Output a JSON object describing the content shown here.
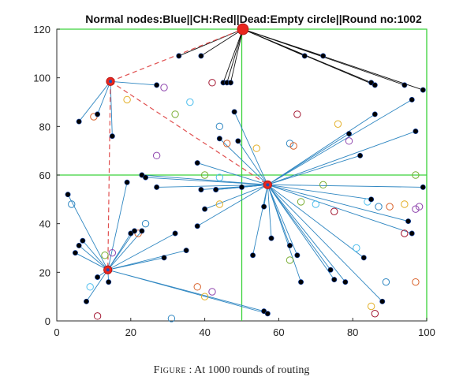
{
  "chart_data": {
    "type": "scatter",
    "title": "Normal nodes:Blue||CH:Red||Dead:Empty circle||Round no:1002",
    "xlabel": "",
    "ylabel": "",
    "xlim": [
      0,
      100
    ],
    "ylim": [
      0,
      120
    ],
    "x_ticks": [
      "0",
      "20",
      "40",
      "60",
      "80",
      "100"
    ],
    "y_ticks": [
      "0",
      "20",
      "40",
      "60",
      "80",
      "100",
      "120"
    ],
    "grid": false,
    "partition_lines": {
      "x": 50,
      "y": 60
    },
    "colors": {
      "alive_node": "#000000",
      "alive_node_edge": "#1f4fb4",
      "cluster_head": "#e8261d",
      "member_link": "#2e86c1",
      "head_link_top": "#111111",
      "ch_route": "#e05050",
      "partition": "#3ad23a",
      "dead_palette": [
        "#2e86c1",
        "#d9622b",
        "#e3b02a",
        "#8e44ad",
        "#77ac30",
        "#4dbeee",
        "#a2142f"
      ]
    },
    "cluster_heads": [
      {
        "x": 50.3,
        "y": 120
      },
      {
        "x": 14.5,
        "y": 98.5
      },
      {
        "x": 57,
        "y": 56
      },
      {
        "x": 13.8,
        "y": 21
      }
    ],
    "ch_route": [
      [
        14.5,
        98.5
      ],
      [
        50.3,
        120
      ],
      [
        14.5,
        98.5
      ],
      [
        57,
        56
      ],
      [
        14.5,
        98.5
      ],
      [
        13.8,
        21
      ]
    ],
    "alive_nodes": [
      [
        33,
        109
      ],
      [
        39,
        109
      ],
      [
        45,
        98
      ],
      [
        46,
        98
      ],
      [
        47,
        98
      ],
      [
        67,
        109
      ],
      [
        72,
        109
      ],
      [
        85,
        98
      ],
      [
        86,
        97
      ],
      [
        94,
        97
      ],
      [
        96,
        91
      ],
      [
        99,
        95
      ],
      [
        6,
        82
      ],
      [
        11,
        85
      ],
      [
        15,
        76
      ],
      [
        27,
        97
      ],
      [
        48,
        86
      ],
      [
        44,
        75
      ],
      [
        49,
        74
      ],
      [
        38,
        65
      ],
      [
        23,
        60
      ],
      [
        24,
        59
      ],
      [
        27,
        55
      ],
      [
        39,
        54
      ],
      [
        43,
        54
      ],
      [
        40,
        46
      ],
      [
        43,
        54
      ],
      [
        50,
        55
      ],
      [
        56,
        47
      ],
      [
        58,
        34
      ],
      [
        53,
        27
      ],
      [
        63,
        31
      ],
      [
        65,
        27
      ],
      [
        66,
        16
      ],
      [
        74,
        21
      ],
      [
        75,
        17
      ],
      [
        78,
        16
      ],
      [
        79,
        77
      ],
      [
        82,
        68
      ],
      [
        86,
        85
      ],
      [
        85,
        50
      ],
      [
        95,
        41
      ],
      [
        96,
        36
      ],
      [
        97,
        78
      ],
      [
        99,
        55
      ],
      [
        83,
        26
      ],
      [
        88,
        8
      ],
      [
        56,
        4
      ],
      [
        57,
        3
      ],
      [
        3,
        52
      ],
      [
        5,
        28
      ],
      [
        6,
        31
      ],
      [
        7,
        33
      ],
      [
        8,
        8
      ],
      [
        11,
        18
      ],
      [
        14,
        16
      ],
      [
        19,
        57
      ],
      [
        20,
        36
      ],
      [
        21,
        37
      ],
      [
        23,
        37
      ],
      [
        29,
        26
      ],
      [
        32,
        36
      ],
      [
        35,
        29
      ],
      [
        38,
        39
      ]
    ],
    "dead_nodes": [
      [
        4,
        48
      ],
      [
        10,
        84
      ],
      [
        19,
        91
      ],
      [
        29,
        96
      ],
      [
        32,
        85
      ],
      [
        36,
        90
      ],
      [
        42,
        98
      ],
      [
        44,
        80
      ],
      [
        46,
        73
      ],
      [
        54,
        71
      ],
      [
        27,
        68
      ],
      [
        40,
        60
      ],
      [
        44,
        59
      ],
      [
        65,
        85
      ],
      [
        63,
        73
      ],
      [
        64,
        72
      ],
      [
        76,
        81
      ],
      [
        79,
        74
      ],
      [
        72,
        56
      ],
      [
        70,
        48
      ],
      [
        75,
        45
      ],
      [
        87,
        47
      ],
      [
        90,
        47
      ],
      [
        94,
        48
      ],
      [
        97,
        46
      ],
      [
        97,
        60
      ],
      [
        84,
        49
      ],
      [
        94,
        36
      ],
      [
        24,
        40
      ],
      [
        22,
        36
      ],
      [
        44,
        48
      ],
      [
        15,
        28
      ],
      [
        13,
        27
      ],
      [
        9,
        14
      ],
      [
        11,
        2
      ],
      [
        31,
        1
      ],
      [
        38,
        14
      ],
      [
        40,
        10
      ],
      [
        42,
        12
      ],
      [
        63,
        25
      ],
      [
        81,
        30
      ],
      [
        86,
        3
      ],
      [
        89,
        16
      ],
      [
        97,
        16
      ],
      [
        85,
        6
      ],
      [
        98,
        47
      ],
      [
        66,
        49
      ]
    ]
  },
  "caption": {
    "label": "Figure",
    "separator": ":",
    "text": "At 1000 rounds of routing"
  }
}
